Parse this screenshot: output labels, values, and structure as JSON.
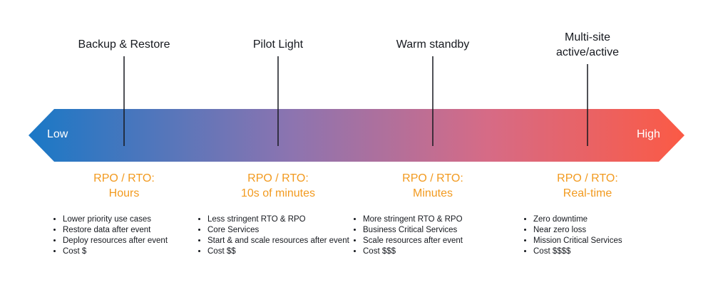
{
  "arrow": {
    "low": "Low",
    "high": "High"
  },
  "strategies": [
    {
      "name": [
        "Backup & Restore"
      ],
      "rpo_rto": [
        "RPO / RTO:",
        "Hours"
      ],
      "bullets": [
        "Lower priority use cases",
        "Restore data after event",
        "Deploy resources after event",
        "Cost $"
      ]
    },
    {
      "name": [
        "Pilot Light"
      ],
      "rpo_rto": [
        "RPO / RTO:",
        "10s of minutes"
      ],
      "bullets": [
        "Less stringent RTO & RPO",
        "Core Services",
        "Start & and scale resources after event",
        "Cost $$"
      ]
    },
    {
      "name": [
        "Warm standby"
      ],
      "rpo_rto": [
        "RPO / RTO:",
        "Minutes"
      ],
      "bullets": [
        "More stringent RTO & RPO",
        "Business Critical Services",
        "Scale resources after event",
        "Cost $$$"
      ]
    },
    {
      "name": [
        "Multi-site",
        "active/active"
      ],
      "rpo_rto": [
        "RPO / RTO:",
        "Real-time"
      ],
      "bullets": [
        "Zero downtime",
        "Near zero loss",
        "Mission Critical Services",
        "Cost $$$$"
      ]
    }
  ]
}
